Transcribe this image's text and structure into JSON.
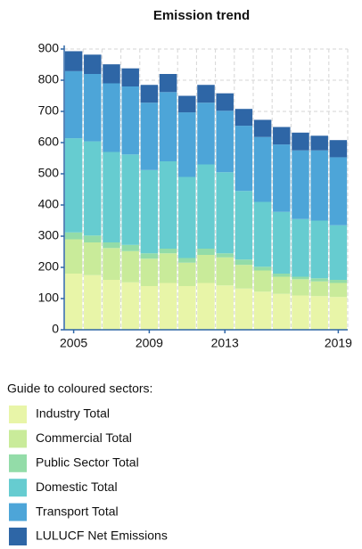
{
  "chart_data": {
    "type": "stacked_bar",
    "title": "Emission trend",
    "categories": [
      "2005",
      null,
      null,
      null,
      "2009",
      null,
      null,
      null,
      "2013",
      null,
      null,
      null,
      null,
      null,
      "2019"
    ],
    "ylim": [
      0,
      900
    ],
    "yticks": [
      0,
      100,
      200,
      300,
      400,
      500,
      600,
      700,
      800,
      900
    ],
    "grid": true,
    "legend_title": "Guide to coloured sectors:",
    "series": [
      {
        "name": "Industry Total",
        "color": "#e8f5a8",
        "values": [
          180,
          175,
          160,
          152,
          140,
          150,
          140,
          150,
          142,
          132,
          122,
          115,
          110,
          108,
          105
        ]
      },
      {
        "name": "Commercial Total",
        "color": "#c9eb9a",
        "values": [
          110,
          105,
          102,
          100,
          88,
          95,
          75,
          90,
          90,
          76,
          68,
          55,
          52,
          47,
          45
        ]
      },
      {
        "name": "Public Sector Total",
        "color": "#93dca8",
        "values": [
          22,
          22,
          18,
          20,
          17,
          15,
          15,
          20,
          13,
          17,
          12,
          10,
          8,
          10,
          10
        ]
      },
      {
        "name": "Domestic Total",
        "color": "#66ccd0",
        "values": [
          302,
          302,
          290,
          290,
          267,
          280,
          260,
          270,
          260,
          220,
          208,
          198,
          185,
          185,
          175
        ]
      },
      {
        "name": "Transport Total",
        "color": "#4da5d8",
        "values": [
          215,
          216,
          220,
          218,
          216,
          222,
          207,
          198,
          197,
          209,
          208,
          216,
          220,
          225,
          218
        ]
      },
      {
        "name": "LULUCF Net Emissions",
        "color": "#2e66a6",
        "values": [
          64,
          62,
          61,
          58,
          57,
          58,
          53,
          57,
          56,
          54,
          55,
          56,
          57,
          47,
          55
        ]
      }
    ]
  }
}
